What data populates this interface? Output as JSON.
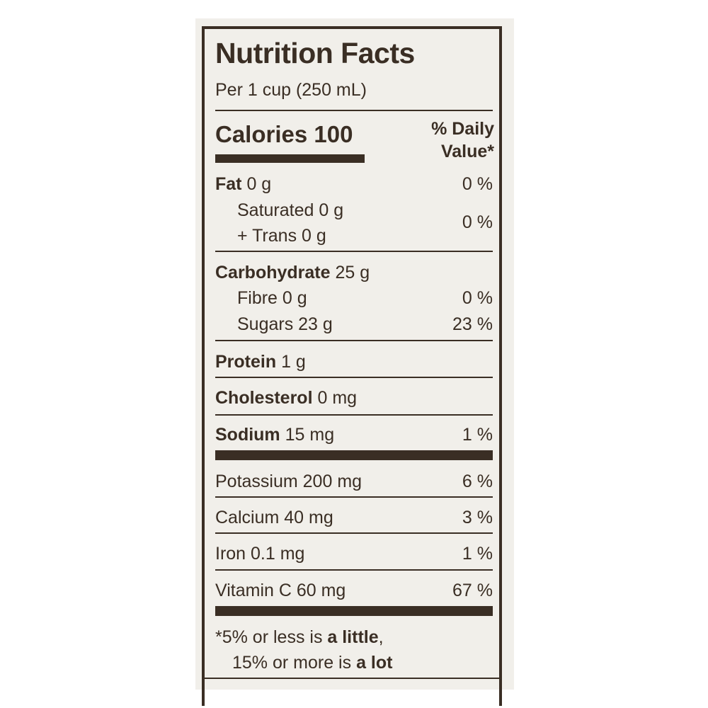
{
  "title": "Nutrition Facts",
  "serving": "Per 1 cup (250 mL)",
  "calories_label": "Calories 100",
  "dv_header_line1": "% Daily",
  "dv_header_line2": "Value*",
  "nutrients": {
    "fat": {
      "name": "Fat",
      "amount": " 0 g",
      "dv": "0 %"
    },
    "saturated": {
      "text": "Saturated 0 g"
    },
    "trans": {
      "text": "+ Trans 0 g"
    },
    "sat_trans_dv": "0 %",
    "carbohydrate": {
      "name": "Carbohydrate",
      "amount": " 25 g"
    },
    "fibre": {
      "text": "Fibre 0 g",
      "dv": "0 %"
    },
    "sugars": {
      "text": "Sugars 23 g",
      "dv": "23 %"
    },
    "protein": {
      "name": "Protein",
      "amount": " 1 g"
    },
    "cholesterol": {
      "name": "Cholesterol",
      "amount": " 0 mg"
    },
    "sodium": {
      "name": "Sodium",
      "amount": " 15 mg",
      "dv": "1 %"
    },
    "potassium": {
      "text": "Potassium 200 mg",
      "dv": "6 %"
    },
    "calcium": {
      "text": "Calcium 40 mg",
      "dv": "3 %"
    },
    "iron": {
      "text": "Iron 0.1 mg",
      "dv": "1 %"
    },
    "vitamin_c": {
      "text": "Vitamin C 60 mg",
      "dv": "67 %"
    }
  },
  "footnote": {
    "line1_a": "*5% or less is ",
    "line1_b": "a little",
    "line1_c": ",",
    "line2_a": "15% or more is ",
    "line2_b": "a lot"
  },
  "colors": {
    "ink": "#3a2e24",
    "paper": "#f1efea"
  }
}
